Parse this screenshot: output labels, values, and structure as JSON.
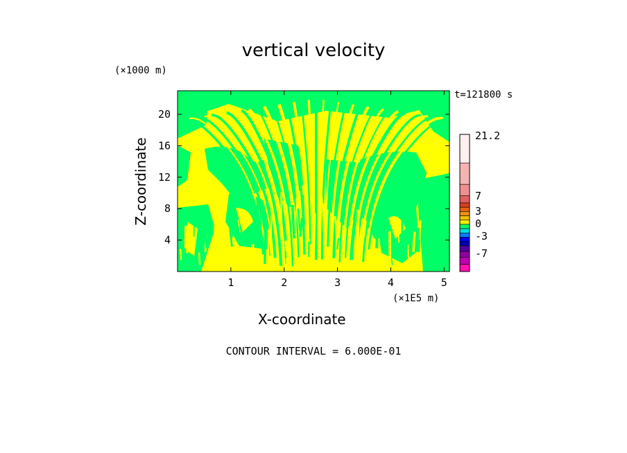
{
  "chart_data": {
    "type": "heatmap",
    "title": "vertical velocity",
    "xlabel": "X-coordinate",
    "ylabel": "Z-coordinate",
    "x_unit": "(×1E5 m)",
    "z_unit": "(×1000 m)",
    "time_label": "t=121800 s",
    "xlim": [
      0,
      5.1
    ],
    "ylim": [
      0,
      23
    ],
    "x_ticks": [
      1,
      2,
      3,
      4,
      5
    ],
    "y_ticks": [
      4,
      8,
      12,
      16,
      20
    ],
    "contour_interval_label": "CONTOUR INTERVAL = 6.000E-01",
    "field_note": "Alternating positive (yellow, ~0 to 0.6) and near-zero/negative (green, ~-0.6 to 0) vertical velocity bands; narrow vertical striations centered near x=2.6 fanning out above z=16",
    "field_colors": {
      "positive_band": "#ffff00",
      "negative_band": "#00ff66"
    },
    "colorbar": {
      "labels": [
        "21.2",
        "7",
        "3",
        "0",
        "-3",
        "-7"
      ],
      "levels_from_top": [
        {
          "color": "#fff0f0"
        },
        {
          "color": "#f4b4b4"
        },
        {
          "color": "#ee9090"
        },
        {
          "color": "#e06060"
        },
        {
          "color": "#d84020"
        },
        {
          "color": "#e86010"
        },
        {
          "color": "#f09010"
        },
        {
          "color": "#f0c000"
        },
        {
          "color": "#f0f000"
        },
        {
          "color": "#00ff66"
        },
        {
          "color": "#00e0e0"
        },
        {
          "color": "#0080ff"
        },
        {
          "color": "#0000ff"
        },
        {
          "color": "#0000b0"
        },
        {
          "color": "#5000a0"
        },
        {
          "color": "#9000a0"
        },
        {
          "color": "#c000b0"
        },
        {
          "color": "#ff10b0"
        }
      ]
    }
  }
}
